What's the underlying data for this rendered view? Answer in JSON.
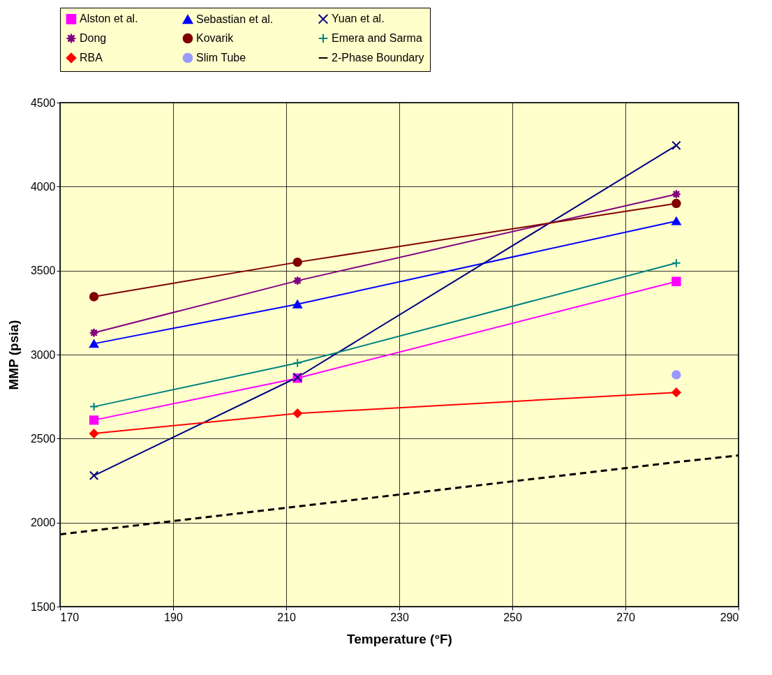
{
  "chart_data": {
    "type": "line",
    "xlabel": "Temperature (°F)",
    "ylabel": "MMP (psia)",
    "xlim": [
      170,
      290
    ],
    "xticks": [
      170,
      190,
      210,
      230,
      250,
      270,
      290
    ],
    "ylim": [
      1500,
      4500
    ],
    "yticks": [
      1500,
      2000,
      2500,
      3000,
      3500,
      4000,
      4500
    ],
    "grid": true,
    "legend": "top",
    "series": [
      {
        "name": "Alston et al.",
        "color": "#ff00ff",
        "marker": "square",
        "x": [
          176,
          212,
          279
        ],
        "values": [
          2610,
          2860,
          3435
        ]
      },
      {
        "name": "Sebastian et al.",
        "color": "#0000ff",
        "marker": "triangle",
        "x": [
          176,
          212,
          279
        ],
        "values": [
          3065,
          3300,
          3795
        ]
      },
      {
        "name": "Yuan et al.",
        "color": "#000080",
        "marker": "cross",
        "x": [
          176,
          212,
          279
        ],
        "values": [
          2280,
          2865,
          4245
        ]
      },
      {
        "name": "Dong",
        "color": "#800080",
        "marker": "star",
        "x": [
          176,
          212,
          279
        ],
        "values": [
          3130,
          3440,
          3955
        ]
      },
      {
        "name": "Kovarik",
        "color": "#800000",
        "marker": "circle",
        "x": [
          176,
          212,
          279
        ],
        "values": [
          3345,
          3550,
          3900
        ]
      },
      {
        "name": "Emera and Sarma",
        "color": "#008080",
        "marker": "plus",
        "x": [
          176,
          212,
          279
        ],
        "values": [
          2690,
          2950,
          3545
        ]
      },
      {
        "name": "RBA",
        "color": "#ff0000",
        "marker": "diamond",
        "x": [
          176,
          212,
          279
        ],
        "values": [
          2530,
          2650,
          2775
        ]
      },
      {
        "name": "Slim Tube",
        "type": "scatter",
        "color": "#9999ff",
        "marker": "circle",
        "x": [
          279
        ],
        "values": [
          2880
        ]
      },
      {
        "name": "2-Phase Boundary",
        "color": "#000000",
        "marker": "none",
        "line_style": "dashed",
        "x": [
          170,
          279,
          290
        ],
        "values": [
          1930,
          2360,
          2400
        ]
      }
    ]
  }
}
